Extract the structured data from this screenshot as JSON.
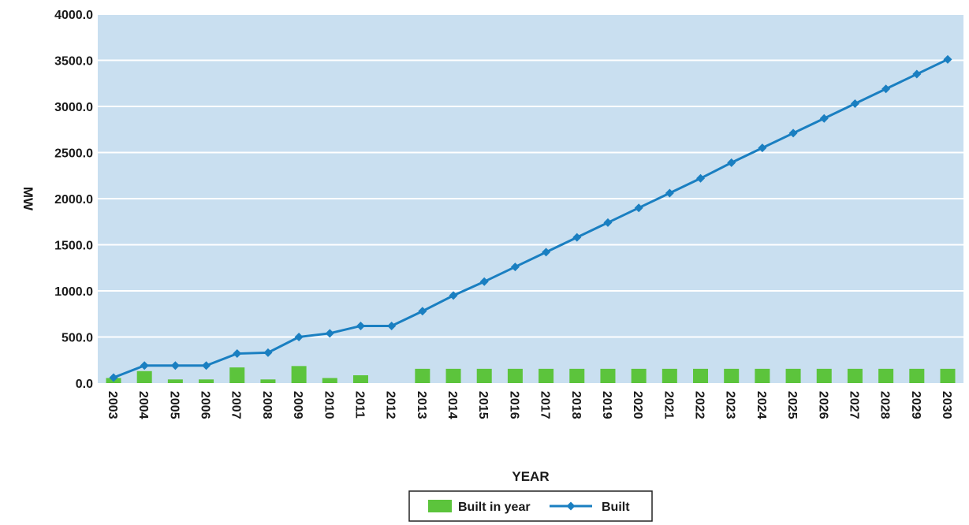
{
  "chart_data": {
    "type": "bar",
    "title": "",
    "xlabel": "YEAR",
    "ylabel": "MW",
    "ylim": [
      0,
      4000
    ],
    "yticks": [
      "0.0",
      "500.0",
      "1000.0",
      "1500.0",
      "2000.0",
      "2500.0",
      "3000.0",
      "3500.0",
      "4000.0"
    ],
    "grid": true,
    "legend_position": "bottom-center",
    "categories": [
      "2003",
      "2004",
      "2005",
      "2006",
      "2007",
      "2008",
      "2009",
      "2010",
      "2011",
      "2012",
      "2013",
      "2014",
      "2015",
      "2016",
      "2017",
      "2018",
      "2019",
      "2020",
      "2021",
      "2022",
      "2023",
      "2024",
      "2025",
      "2026",
      "2027",
      "2028",
      "2029",
      "2030"
    ],
    "series": [
      {
        "name": "Built in year",
        "type": "bar",
        "color": "#5cc43c",
        "values": [
          55,
          130,
          40,
          40,
          170,
          40,
          185,
          55,
          85,
          0,
          155,
          155,
          155,
          155,
          155,
          155,
          155,
          155,
          155,
          155,
          155,
          155,
          155,
          155,
          155,
          155,
          155,
          155
        ]
      },
      {
        "name": "Built",
        "type": "line",
        "color": "#1a7fc1",
        "values": [
          60,
          190,
          190,
          190,
          320,
          330,
          500,
          540,
          620,
          620,
          780,
          950,
          1100,
          1260,
          1420,
          1580,
          1740,
          1900,
          2060,
          2220,
          2390,
          2550,
          2710,
          2870,
          3030,
          3190,
          3350,
          3510
        ]
      }
    ]
  },
  "colors": {
    "plot_background": "#c9dff0",
    "gridline": "#ffffff"
  }
}
